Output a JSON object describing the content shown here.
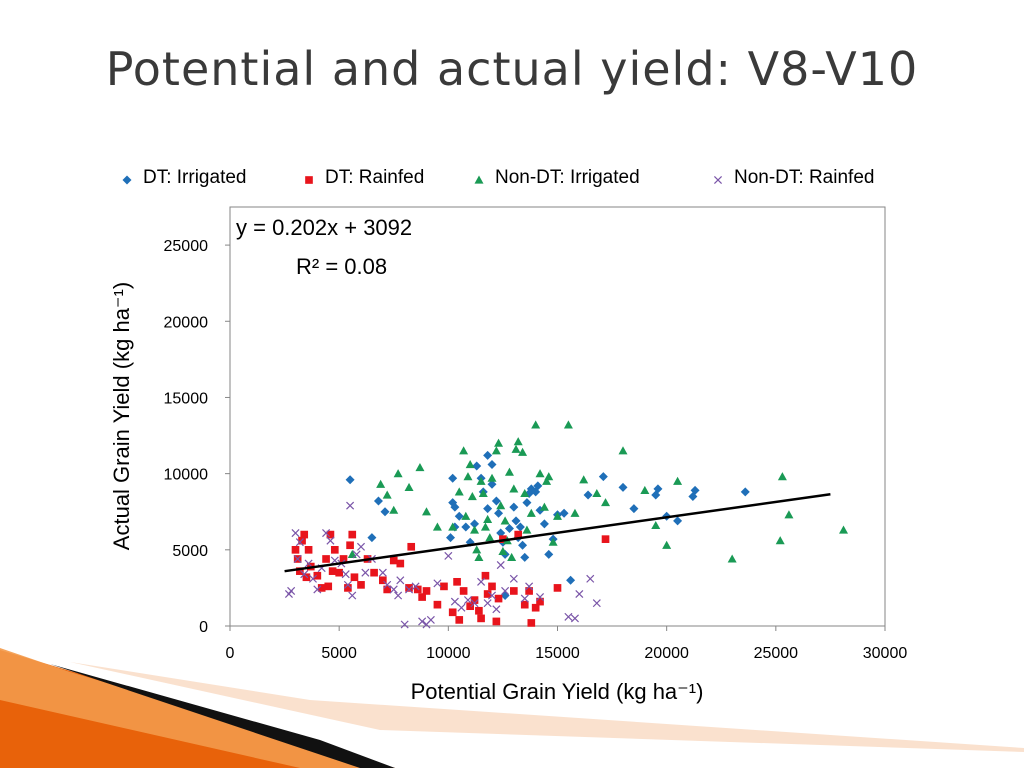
{
  "slide": {
    "title": "Potential and actual yield: V8-V10"
  },
  "colors": {
    "dt_irrigated": "#1f6fb8",
    "dt_rainfed": "#e8141c",
    "nondt_irrigated": "#1a9a55",
    "nondt_rainfed": "#7a55a8",
    "trendline": "#000000",
    "accent_orange": "#e8620a"
  },
  "chart_data": {
    "type": "scatter",
    "xlabel": "Potential Grain Yield (kg ha⁻¹)",
    "ylabel": "Actual Grain Yield (kg ha⁻¹)",
    "xlim": [
      0,
      30000
    ],
    "ylim": [
      0,
      27500
    ],
    "xticks": [
      0,
      5000,
      10000,
      15000,
      20000,
      25000,
      30000
    ],
    "yticks": [
      0,
      5000,
      10000,
      15000,
      20000,
      25000
    ],
    "grid": false,
    "legend_position": "top",
    "equation": "y = 0.202x + 3092",
    "r_squared": "R² = 0.08",
    "trendline": {
      "slope": 0.202,
      "intercept": 3092,
      "x_range": [
        2500,
        27500
      ]
    },
    "series": [
      {
        "name": "DT: Irrigated",
        "marker": "diamond",
        "points": [
          [
            5500,
            9600
          ],
          [
            6800,
            8200
          ],
          [
            7100,
            7500
          ],
          [
            6500,
            5800
          ],
          [
            10200,
            9700
          ],
          [
            10200,
            8100
          ],
          [
            10300,
            7800
          ],
          [
            10300,
            6500
          ],
          [
            10100,
            5800
          ],
          [
            10500,
            7200
          ],
          [
            10800,
            6500
          ],
          [
            11000,
            5500
          ],
          [
            11200,
            6700
          ],
          [
            11300,
            10500
          ],
          [
            11500,
            9700
          ],
          [
            11600,
            8800
          ],
          [
            11800,
            7700
          ],
          [
            11800,
            11200
          ],
          [
            12000,
            10600
          ],
          [
            12000,
            9300
          ],
          [
            12200,
            8200
          ],
          [
            12300,
            7400
          ],
          [
            12400,
            6100
          ],
          [
            12500,
            5500
          ],
          [
            12600,
            4700
          ],
          [
            12800,
            6400
          ],
          [
            13000,
            7800
          ],
          [
            13100,
            6900
          ],
          [
            13200,
            5800
          ],
          [
            13300,
            6500
          ],
          [
            13400,
            5300
          ],
          [
            13600,
            8100
          ],
          [
            13700,
            8700
          ],
          [
            13800,
            9000
          ],
          [
            14000,
            8800
          ],
          [
            14100,
            9200
          ],
          [
            14200,
            7600
          ],
          [
            14400,
            6700
          ],
          [
            14600,
            4700
          ],
          [
            14800,
            5700
          ],
          [
            15000,
            7300
          ],
          [
            15300,
            7400
          ],
          [
            15600,
            3000
          ],
          [
            16400,
            8600
          ],
          [
            17100,
            9800
          ],
          [
            18000,
            9100
          ],
          [
            18500,
            7700
          ],
          [
            19500,
            8600
          ],
          [
            19600,
            9000
          ],
          [
            20000,
            7200
          ],
          [
            20500,
            6900
          ],
          [
            21200,
            8500
          ],
          [
            21300,
            8900
          ],
          [
            23600,
            8800
          ],
          [
            12600,
            2000
          ],
          [
            13500,
            4500
          ]
        ]
      },
      {
        "name": "DT: Rainfed",
        "marker": "square",
        "points": [
          [
            3000,
            5000
          ],
          [
            3100,
            4400
          ],
          [
            3200,
            3600
          ],
          [
            3300,
            5600
          ],
          [
            3400,
            6000
          ],
          [
            3500,
            3200
          ],
          [
            3600,
            5000
          ],
          [
            3700,
            3900
          ],
          [
            4000,
            3300
          ],
          [
            4200,
            2500
          ],
          [
            4400,
            4400
          ],
          [
            4500,
            2600
          ],
          [
            4600,
            6000
          ],
          [
            4700,
            3600
          ],
          [
            4800,
            5000
          ],
          [
            5000,
            3500
          ],
          [
            5200,
            4400
          ],
          [
            5400,
            2500
          ],
          [
            5500,
            5300
          ],
          [
            5600,
            6000
          ],
          [
            5700,
            3200
          ],
          [
            6000,
            2700
          ],
          [
            6300,
            4400
          ],
          [
            6600,
            3500
          ],
          [
            7000,
            3000
          ],
          [
            7200,
            2400
          ],
          [
            7500,
            4300
          ],
          [
            7800,
            4100
          ],
          [
            8200,
            2500
          ],
          [
            8300,
            5200
          ],
          [
            8600,
            2400
          ],
          [
            8800,
            1900
          ],
          [
            9000,
            2300
          ],
          [
            9500,
            1400
          ],
          [
            9800,
            2600
          ],
          [
            10200,
            900
          ],
          [
            10400,
            2900
          ],
          [
            10500,
            400
          ],
          [
            10700,
            2300
          ],
          [
            11000,
            1300
          ],
          [
            11200,
            1700
          ],
          [
            11400,
            1000
          ],
          [
            11500,
            500
          ],
          [
            11700,
            3300
          ],
          [
            11800,
            2100
          ],
          [
            12000,
            2600
          ],
          [
            12200,
            300
          ],
          [
            12300,
            1800
          ],
          [
            12500,
            5700
          ],
          [
            13000,
            2300
          ],
          [
            13200,
            6000
          ],
          [
            13500,
            1400
          ],
          [
            13700,
            2300
          ],
          [
            13800,
            200
          ],
          [
            14000,
            1200
          ],
          [
            14200,
            1600
          ],
          [
            15000,
            2500
          ],
          [
            17200,
            5700
          ]
        ]
      },
      {
        "name": "Non-DT: Irrigated",
        "marker": "triangle",
        "points": [
          [
            5600,
            4700
          ],
          [
            6900,
            9300
          ],
          [
            7200,
            8600
          ],
          [
            7500,
            7600
          ],
          [
            7700,
            10000
          ],
          [
            8200,
            9100
          ],
          [
            8700,
            10400
          ],
          [
            9000,
            7500
          ],
          [
            9500,
            6500
          ],
          [
            10200,
            6500
          ],
          [
            10500,
            8800
          ],
          [
            10700,
            11500
          ],
          [
            10800,
            7200
          ],
          [
            10900,
            9800
          ],
          [
            11000,
            10600
          ],
          [
            11100,
            8500
          ],
          [
            11200,
            6300
          ],
          [
            11300,
            5000
          ],
          [
            11400,
            4500
          ],
          [
            11500,
            9500
          ],
          [
            11600,
            8700
          ],
          [
            11700,
            6500
          ],
          [
            11800,
            7000
          ],
          [
            11900,
            5800
          ],
          [
            12000,
            9700
          ],
          [
            12200,
            11500
          ],
          [
            12300,
            12000
          ],
          [
            12400,
            7900
          ],
          [
            12500,
            4900
          ],
          [
            12600,
            6900
          ],
          [
            12700,
            5600
          ],
          [
            12800,
            10100
          ],
          [
            12900,
            4500
          ],
          [
            13000,
            9000
          ],
          [
            13100,
            11600
          ],
          [
            13200,
            12100
          ],
          [
            13400,
            11400
          ],
          [
            13500,
            8700
          ],
          [
            13600,
            6300
          ],
          [
            13800,
            7400
          ],
          [
            14000,
            13200
          ],
          [
            14200,
            10000
          ],
          [
            14400,
            7800
          ],
          [
            14500,
            9500
          ],
          [
            14600,
            9800
          ],
          [
            14800,
            5500
          ],
          [
            15000,
            7200
          ],
          [
            15500,
            13200
          ],
          [
            15800,
            7400
          ],
          [
            16200,
            9600
          ],
          [
            16800,
            8700
          ],
          [
            17200,
            8100
          ],
          [
            18000,
            11500
          ],
          [
            19000,
            8900
          ],
          [
            19500,
            6600
          ],
          [
            20000,
            5300
          ],
          [
            20500,
            9500
          ],
          [
            23000,
            4400
          ],
          [
            25200,
            5600
          ],
          [
            25300,
            9800
          ],
          [
            25600,
            7300
          ],
          [
            28100,
            6300
          ]
        ]
      },
      {
        "name": "Non-DT: Rainfed",
        "marker": "x",
        "points": [
          [
            2700,
            2100
          ],
          [
            2800,
            2300
          ],
          [
            3000,
            6100
          ],
          [
            3100,
            4400
          ],
          [
            3200,
            5500
          ],
          [
            3400,
            3400
          ],
          [
            3600,
            4100
          ],
          [
            3800,
            3100
          ],
          [
            4000,
            2400
          ],
          [
            4200,
            3800
          ],
          [
            4400,
            6100
          ],
          [
            4600,
            5600
          ],
          [
            4800,
            4300
          ],
          [
            5100,
            4100
          ],
          [
            5300,
            3400
          ],
          [
            5400,
            2700
          ],
          [
            5500,
            7900
          ],
          [
            5600,
            2000
          ],
          [
            5800,
            4700
          ],
          [
            6000,
            5200
          ],
          [
            6200,
            3500
          ],
          [
            6500,
            4400
          ],
          [
            7000,
            3500
          ],
          [
            7200,
            2700
          ],
          [
            7500,
            2400
          ],
          [
            7700,
            2000
          ],
          [
            7800,
            3000
          ],
          [
            8000,
            100
          ],
          [
            8200,
            2400
          ],
          [
            8500,
            2600
          ],
          [
            8800,
            300
          ],
          [
            9000,
            100
          ],
          [
            9200,
            400
          ],
          [
            9500,
            2800
          ],
          [
            10000,
            4600
          ],
          [
            10300,
            1600
          ],
          [
            10600,
            1200
          ],
          [
            10900,
            1700
          ],
          [
            11200,
            1500
          ],
          [
            11500,
            2900
          ],
          [
            11800,
            1500
          ],
          [
            12000,
            2000
          ],
          [
            12200,
            1100
          ],
          [
            12400,
            4000
          ],
          [
            12600,
            2300
          ],
          [
            13000,
            3100
          ],
          [
            13500,
            1800
          ],
          [
            13700,
            2600
          ],
          [
            14200,
            1900
          ],
          [
            15500,
            600
          ],
          [
            15800,
            500
          ],
          [
            16000,
            2100
          ],
          [
            16500,
            3100
          ],
          [
            16800,
            1500
          ]
        ]
      }
    ]
  }
}
